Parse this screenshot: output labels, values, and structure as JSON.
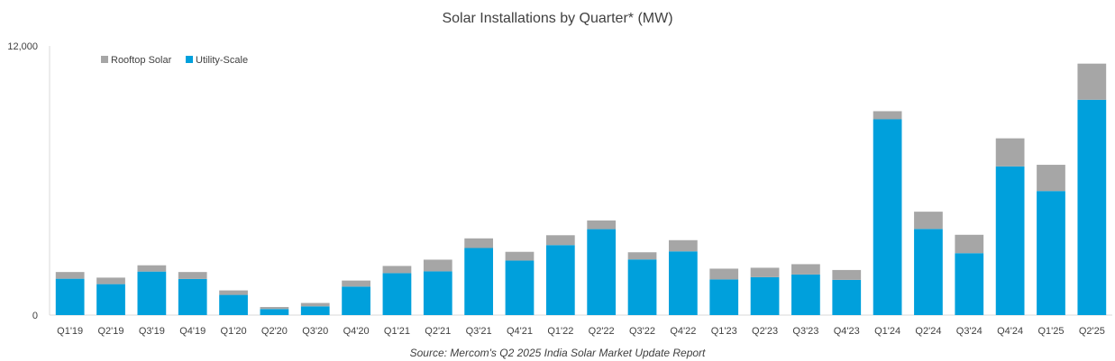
{
  "chart_data": {
    "type": "bar",
    "stacked": true,
    "title": "Solar Installations by Quarter* (MW)",
    "xlabel": "",
    "ylabel": "",
    "ylim": [
      0,
      12000
    ],
    "yticks": [
      "0",
      "12,000"
    ],
    "grid": false,
    "legend_position": "top-left",
    "categories": [
      "Q1'19",
      "Q2'19",
      "Q3'19",
      "Q4'19",
      "Q1'20",
      "Q2'20",
      "Q3'20",
      "Q4'20",
      "Q1'21",
      "Q2'21",
      "Q3'21",
      "Q4'21",
      "Q1'22",
      "Q2'22",
      "Q3'22",
      "Q4'22",
      "Q1'23",
      "Q2'23",
      "Q3'23",
      "Q4'23",
      "Q1'24",
      "Q2'24",
      "Q3'24",
      "Q4'24",
      "Q1'25",
      "Q2'25"
    ],
    "series": [
      {
        "name": "Utility-Scale",
        "color": "#00a0dc",
        "values": [
          1620,
          1380,
          1940,
          1610,
          900,
          270,
          390,
          1270,
          1870,
          1950,
          2990,
          2430,
          3120,
          3830,
          2480,
          2840,
          1590,
          1690,
          1810,
          1570,
          8730,
          3840,
          2760,
          6630,
          5530,
          9600
        ]
      },
      {
        "name": "Rooftop Solar",
        "color": "#a6a6a6",
        "values": [
          300,
          290,
          280,
          310,
          200,
          90,
          150,
          270,
          320,
          520,
          430,
          390,
          440,
          390,
          320,
          500,
          480,
          420,
          460,
          440,
          360,
          770,
          820,
          1250,
          1170,
          1610
        ]
      }
    ],
    "source": "Source: Mercom's Q2 2025 India Solar Market Update Report"
  }
}
